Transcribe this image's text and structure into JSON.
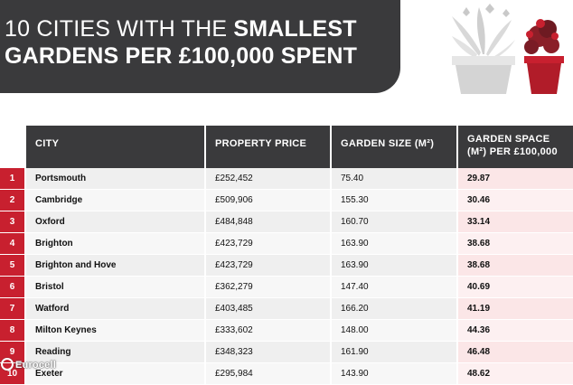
{
  "header": {
    "title_line1_light": "10 CITIES WITH THE ",
    "title_line1_bold": "SMALLEST",
    "title_line2": "GARDENS PER £100,000 SPENT"
  },
  "table": {
    "columns": {
      "city": "CITY",
      "price": "PROPERTY PRICE",
      "garden": "GARDEN SIZE (M²)",
      "space_line1": "GARDEN SPACE",
      "space_line2": "(M²) PER £100,000"
    },
    "rows": [
      {
        "rank": "1",
        "city": "Portsmouth",
        "price": "£252,452",
        "garden": "75.40",
        "space": "29.87"
      },
      {
        "rank": "2",
        "city": "Cambridge",
        "price": "£509,906",
        "garden": "155.30",
        "space": "30.46"
      },
      {
        "rank": "3",
        "city": "Oxford",
        "price": "£484,848",
        "garden": "160.70",
        "space": "33.14"
      },
      {
        "rank": "4",
        "city": "Brighton",
        "price": "£423,729",
        "garden": "163.90",
        "space": "38.68"
      },
      {
        "rank": "5",
        "city": "Brighton and Hove",
        "price": "£423,729",
        "garden": "163.90",
        "space": "38.68"
      },
      {
        "rank": "6",
        "city": "Bristol",
        "price": "£362,279",
        "garden": "147.40",
        "space": "40.69"
      },
      {
        "rank": "7",
        "city": "Watford",
        "price": "£403,485",
        "garden": "166.20",
        "space": "41.19"
      },
      {
        "rank": "8",
        "city": "Milton Keynes",
        "price": "£333,602",
        "garden": "148.00",
        "space": "44.36"
      },
      {
        "rank": "9",
        "city": "Reading",
        "price": "£348,323",
        "garden": "161.90",
        "space": "46.48"
      },
      {
        "rank": "10",
        "city": "Exeter",
        "price": "£295,984",
        "garden": "143.90",
        "space": "48.62"
      }
    ]
  },
  "brand": {
    "logo_text": "Eurocell"
  },
  "colors": {
    "banner": "#3a3a3c",
    "accent_red": "#c8202f",
    "highlight_pink": "#fbe6e7"
  },
  "icons": [
    "white-flower-pot-icon",
    "red-flower-pot-icon"
  ]
}
